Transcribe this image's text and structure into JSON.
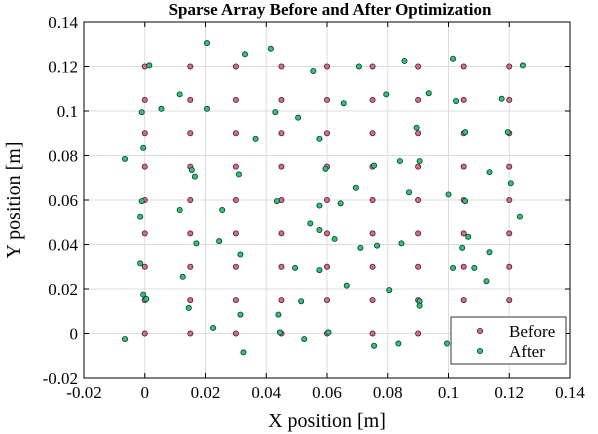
{
  "chart_data": {
    "type": "scatter",
    "title": "Sparse Array Before and After Optimization",
    "xlabel": "X position [m]",
    "ylabel": "Y position [m]",
    "xlim": [
      -0.02,
      0.14
    ],
    "ylim": [
      -0.02,
      0.14
    ],
    "xticks": [
      "-0.02",
      "0",
      "0.02",
      "0.04",
      "0.06",
      "0.08",
      "0.1",
      "0.12",
      "0.14"
    ],
    "yticks": [
      "-0.02",
      "0",
      "0.02",
      "0.04",
      "0.06",
      "0.08",
      "0.1",
      "0.12",
      "0.14"
    ],
    "grid": true,
    "legend_position": "bottom-right",
    "series": [
      {
        "name": "Before",
        "color": "#c8708e",
        "grid_x": [
          0,
          0.015,
          0.03,
          0.045,
          0.06,
          0.075,
          0.09,
          0.105,
          0.12
        ],
        "grid_y": [
          0,
          0.015,
          0.03,
          0.045,
          0.06,
          0.075,
          0.09,
          0.105,
          0.12
        ]
      },
      {
        "name": "After",
        "color": "#2ec27e",
        "points": [
          [
            0.0015,
            0.1205
          ],
          [
            0.0205,
            0.1305
          ],
          [
            0.033,
            0.1255
          ],
          [
            0.0415,
            0.128
          ],
          [
            0.0555,
            0.118
          ],
          [
            0.0705,
            0.12
          ],
          [
            0.0855,
            0.1225
          ],
          [
            0.1015,
            0.1235
          ],
          [
            0.1245,
            0.1205
          ],
          [
            0.0115,
            0.1075
          ],
          [
            0.0055,
            0.101
          ],
          [
            -0.001,
            0.0995
          ],
          [
            0.0205,
            0.101
          ],
          [
            0.043,
            0.0995
          ],
          [
            0.0505,
            0.097
          ],
          [
            0.0655,
            0.1035
          ],
          [
            0.0795,
            0.1075
          ],
          [
            0.0935,
            0.108
          ],
          [
            0.1025,
            0.1045
          ],
          [
            0.1175,
            0.1055
          ],
          [
            -0.0005,
            0.0835
          ],
          [
            0.0365,
            0.0875
          ],
          [
            0.0575,
            0.0875
          ],
          [
            0.0895,
            0.0925
          ],
          [
            0.1055,
            0.0905
          ],
          [
            0.1195,
            0.0905
          ],
          [
            -0.0065,
            0.0785
          ],
          [
            0.0155,
            0.0735
          ],
          [
            0.0165,
            0.0705
          ],
          [
            0.031,
            0.0715
          ],
          [
            0.0595,
            0.074
          ],
          [
            0.0755,
            0.0755
          ],
          [
            0.084,
            0.0775
          ],
          [
            0.0905,
            0.0775
          ],
          [
            0.1135,
            0.0725
          ],
          [
            0.1205,
            0.0675
          ],
          [
            -0.001,
            0.0595
          ],
          [
            -0.0015,
            0.0525
          ],
          [
            0.0115,
            0.0555
          ],
          [
            0.0255,
            0.0555
          ],
          [
            0.0435,
            0.0595
          ],
          [
            0.0545,
            0.0495
          ],
          [
            0.0575,
            0.0575
          ],
          [
            0.0645,
            0.0585
          ],
          [
            0.0695,
            0.0655
          ],
          [
            0.087,
            0.0635
          ],
          [
            0.1,
            0.0625
          ],
          [
            0.1055,
            0.0595
          ],
          [
            0.1235,
            0.0525
          ],
          [
            0.017,
            0.0405
          ],
          [
            0.0245,
            0.0415
          ],
          [
            0.0315,
            0.0355
          ],
          [
            0.0575,
            0.0465
          ],
          [
            0.0625,
            0.0425
          ],
          [
            0.071,
            0.0385
          ],
          [
            0.0765,
            0.0395
          ],
          [
            0.0845,
            0.0405
          ],
          [
            0.1045,
            0.0385
          ],
          [
            0.1065,
            0.0435
          ],
          [
            0.1135,
            0.0365
          ],
          [
            -0.0015,
            0.0315
          ],
          [
            0.0125,
            0.0255
          ],
          [
            0.0495,
            0.0295
          ],
          [
            0.0575,
            0.0285
          ],
          [
            0.0665,
            0.0215
          ],
          [
            0.0805,
            0.0195
          ],
          [
            0.0905,
            0.0145
          ],
          [
            0.1015,
            0.0295
          ],
          [
            0.1085,
            0.0295
          ],
          [
            0.1125,
            0.0235
          ],
          [
            -0.0005,
            0.0175
          ],
          [
            0.0005,
            0.0155
          ],
          [
            0.0145,
            0.0115
          ],
          [
            0.0315,
            0.0085
          ],
          [
            0.044,
            0.0085
          ],
          [
            0.0515,
            0.0145
          ],
          [
            0.0905,
            0.0125
          ],
          [
            -0.0065,
            -0.0025
          ],
          [
            0.0225,
            0.0025
          ],
          [
            0.0325,
            -0.0085
          ],
          [
            0.0445,
            0.0005
          ],
          [
            0.0525,
            -0.0025
          ],
          [
            0.0605,
            0.0005
          ],
          [
            0.0755,
            -0.0055
          ],
          [
            0.0835,
            -0.0045
          ],
          [
            0.0995,
            -0.0045
          ]
        ]
      }
    ]
  }
}
